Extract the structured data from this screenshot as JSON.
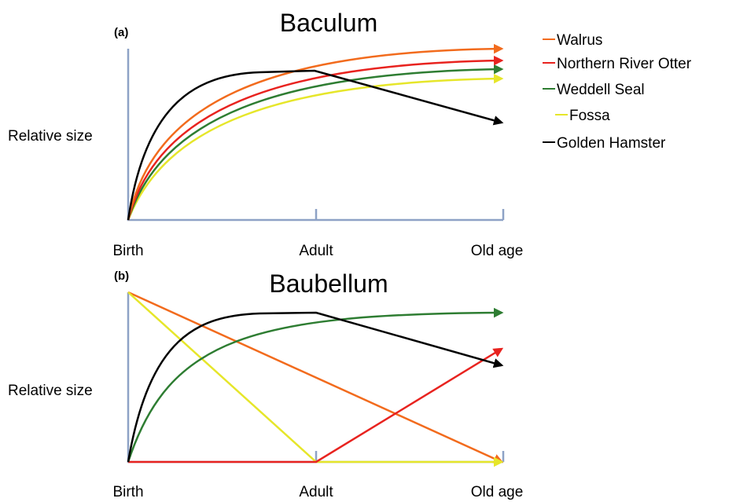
{
  "panels": [
    {
      "label": "(a)",
      "title": "Baculum",
      "y_label": "Relative size",
      "x_labels": [
        "Birth",
        "Adult",
        "Old age"
      ]
    },
    {
      "label": "(b)",
      "title": "Baubellum",
      "y_label": "Relative size",
      "x_labels": [
        "Birth",
        "Adult",
        "Old age"
      ]
    }
  ],
  "legend": [
    "Walrus",
    "Northern River Otter",
    "Weddell Seal",
    "Fossa",
    "Golden Hamster"
  ]
}
